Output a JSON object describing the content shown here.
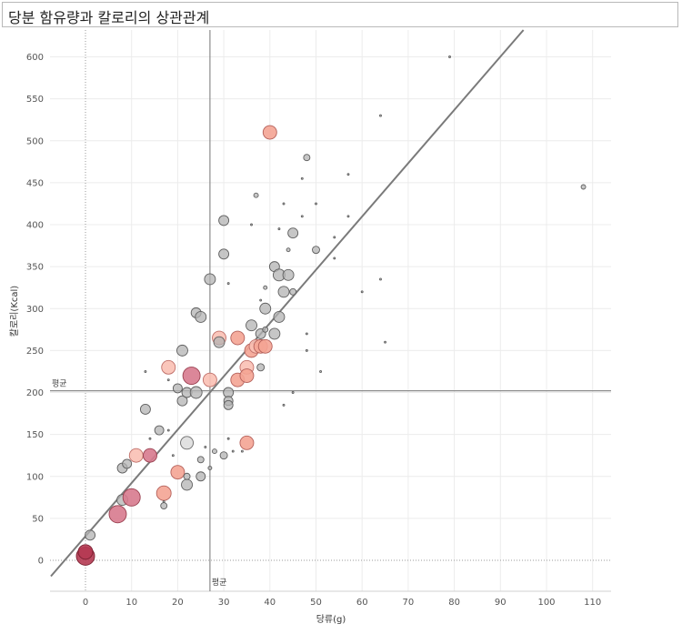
{
  "title": "당분 함유량과 칼로리의 상관관계",
  "chart_data": {
    "type": "scatter",
    "title": "당분 함유량과 칼로리의 상관관계",
    "xlabel": "당류(g)",
    "ylabel": "칼로리(Kcal)",
    "xlim": [
      -7.5,
      114
    ],
    "ylim": [
      -35,
      630
    ],
    "x_ticks": [
      0,
      10,
      20,
      30,
      40,
      50,
      60,
      70,
      80,
      90,
      100,
      110
    ],
    "y_ticks": [
      0,
      50,
      100,
      150,
      200,
      250,
      300,
      350,
      400,
      450,
      500,
      550,
      600
    ],
    "grid": true,
    "reference_lines": {
      "mean_x": {
        "value": 27,
        "label": "평균"
      },
      "mean_y": {
        "value": 202,
        "label": "평균"
      }
    },
    "trend_line": {
      "from": [
        -7.5,
        -19
      ],
      "to": [
        95,
        632
      ]
    },
    "colors": {
      "gray_fill": "#b3b3b3",
      "gray_stroke": "#5f5f5f",
      "light_salmon": "#f9c0b4",
      "salmon": "#f4a494",
      "pink": "#d77a8e",
      "dark_red": "#b53a52",
      "trend": "#7a7a7a"
    },
    "points": [
      {
        "x": 0,
        "y": 5,
        "s": 10,
        "c": "dark_red"
      },
      {
        "x": 0,
        "y": 10,
        "s": 8,
        "c": "dark_red"
      },
      {
        "x": 1,
        "y": 30,
        "s": 5.5,
        "c": "gray"
      },
      {
        "x": 7,
        "y": 55,
        "s": 9.5,
        "c": "pink"
      },
      {
        "x": 8,
        "y": 72,
        "s": 6,
        "c": "gray"
      },
      {
        "x": 8,
        "y": 110,
        "s": 5.5,
        "c": "gray"
      },
      {
        "x": 9,
        "y": 115,
        "s": 5,
        "c": "gray"
      },
      {
        "x": 10,
        "y": 75,
        "s": 9.5,
        "c": "pink"
      },
      {
        "x": 11,
        "y": 125,
        "s": 7.5,
        "c": "light_salmon"
      },
      {
        "x": 13,
        "y": 180,
        "s": 5.5,
        "c": "gray"
      },
      {
        "x": 13,
        "y": 225,
        "s": 1,
        "c": "gray"
      },
      {
        "x": 14,
        "y": 125,
        "s": 7.5,
        "c": "pink"
      },
      {
        "x": 14,
        "y": 145,
        "s": 1,
        "c": "gray"
      },
      {
        "x": 16,
        "y": 155,
        "s": 5,
        "c": "gray"
      },
      {
        "x": 17,
        "y": 80,
        "s": 8,
        "c": "salmon"
      },
      {
        "x": 17,
        "y": 65,
        "s": 3.5,
        "c": "gray"
      },
      {
        "x": 17,
        "y": 70,
        "s": 1,
        "c": "gray"
      },
      {
        "x": 18,
        "y": 230,
        "s": 7.5,
        "c": "light_salmon"
      },
      {
        "x": 18,
        "y": 155,
        "s": 1,
        "c": "gray"
      },
      {
        "x": 18,
        "y": 215,
        "s": 1,
        "c": "gray"
      },
      {
        "x": 19,
        "y": 125,
        "s": 1,
        "c": "gray"
      },
      {
        "x": 20,
        "y": 205,
        "s": 5,
        "c": "gray"
      },
      {
        "x": 20,
        "y": 105,
        "s": 7.5,
        "c": "salmon"
      },
      {
        "x": 21,
        "y": 250,
        "s": 6,
        "c": "gray"
      },
      {
        "x": 21,
        "y": 190,
        "s": 5.5,
        "c": "gray"
      },
      {
        "x": 22,
        "y": 140,
        "s": 7,
        "c": "light_gray"
      },
      {
        "x": 22,
        "y": 90,
        "s": 6,
        "c": "gray"
      },
      {
        "x": 22,
        "y": 200,
        "s": 5.5,
        "c": "gray"
      },
      {
        "x": 22,
        "y": 100,
        "s": 3.5,
        "c": "gray"
      },
      {
        "x": 23,
        "y": 220,
        "s": 9.5,
        "c": "pink"
      },
      {
        "x": 24,
        "y": 295,
        "s": 5.5,
        "c": "gray"
      },
      {
        "x": 24,
        "y": 200,
        "s": 6.5,
        "c": "gray"
      },
      {
        "x": 25,
        "y": 290,
        "s": 6,
        "c": "gray"
      },
      {
        "x": 25,
        "y": 100,
        "s": 5,
        "c": "gray"
      },
      {
        "x": 25,
        "y": 120,
        "s": 3.5,
        "c": "gray"
      },
      {
        "x": 26,
        "y": 135,
        "s": 1,
        "c": "gray"
      },
      {
        "x": 27,
        "y": 335,
        "s": 6,
        "c": "gray"
      },
      {
        "x": 27,
        "y": 215,
        "s": 7.5,
        "c": "light_salmon"
      },
      {
        "x": 27,
        "y": 110,
        "s": 2,
        "c": "gray"
      },
      {
        "x": 28,
        "y": 130,
        "s": 2.5,
        "c": "gray"
      },
      {
        "x": 29,
        "y": 265,
        "s": 7.5,
        "c": "light_salmon"
      },
      {
        "x": 29,
        "y": 260,
        "s": 6,
        "c": "gray"
      },
      {
        "x": 30,
        "y": 405,
        "s": 5.5,
        "c": "gray"
      },
      {
        "x": 30,
        "y": 365,
        "s": 5.5,
        "c": "gray"
      },
      {
        "x": 30,
        "y": 125,
        "s": 4,
        "c": "gray"
      },
      {
        "x": 31,
        "y": 200,
        "s": 5.5,
        "c": "gray"
      },
      {
        "x": 31,
        "y": 190,
        "s": 5,
        "c": "gray"
      },
      {
        "x": 31,
        "y": 185,
        "s": 5,
        "c": "gray"
      },
      {
        "x": 31,
        "y": 145,
        "s": 1,
        "c": "gray"
      },
      {
        "x": 31,
        "y": 330,
        "s": 1,
        "c": "gray"
      },
      {
        "x": 32,
        "y": 130,
        "s": 1,
        "c": "gray"
      },
      {
        "x": 33,
        "y": 265,
        "s": 7.5,
        "c": "salmon"
      },
      {
        "x": 33,
        "y": 215,
        "s": 7.5,
        "c": "salmon"
      },
      {
        "x": 34,
        "y": 130,
        "s": 1,
        "c": "gray"
      },
      {
        "x": 35,
        "y": 140,
        "s": 7.5,
        "c": "salmon"
      },
      {
        "x": 35,
        "y": 230,
        "s": 7.5,
        "c": "light_salmon"
      },
      {
        "x": 35,
        "y": 220,
        "s": 7.5,
        "c": "salmon"
      },
      {
        "x": 36,
        "y": 250,
        "s": 7.5,
        "c": "salmon"
      },
      {
        "x": 36,
        "y": 280,
        "s": 6,
        "c": "gray"
      },
      {
        "x": 36,
        "y": 400,
        "s": 1,
        "c": "gray"
      },
      {
        "x": 37,
        "y": 435,
        "s": 2.5,
        "c": "gray"
      },
      {
        "x": 37,
        "y": 255,
        "s": 7.5,
        "c": "light_salmon"
      },
      {
        "x": 38,
        "y": 255,
        "s": 7.5,
        "c": "salmon"
      },
      {
        "x": 38,
        "y": 270,
        "s": 5.5,
        "c": "gray"
      },
      {
        "x": 38,
        "y": 230,
        "s": 4,
        "c": "gray"
      },
      {
        "x": 38,
        "y": 310,
        "s": 1,
        "c": "gray"
      },
      {
        "x": 39,
        "y": 300,
        "s": 6,
        "c": "gray"
      },
      {
        "x": 39,
        "y": 325,
        "s": 2,
        "c": "gray"
      },
      {
        "x": 39,
        "y": 275,
        "s": 3,
        "c": "gray"
      },
      {
        "x": 39,
        "y": 255,
        "s": 7.5,
        "c": "salmon"
      },
      {
        "x": 40,
        "y": 510,
        "s": 7.5,
        "c": "salmon"
      },
      {
        "x": 41,
        "y": 350,
        "s": 5.5,
        "c": "gray"
      },
      {
        "x": 41,
        "y": 270,
        "s": 6,
        "c": "gray"
      },
      {
        "x": 42,
        "y": 340,
        "s": 6.5,
        "c": "gray"
      },
      {
        "x": 42,
        "y": 290,
        "s": 6,
        "c": "gray"
      },
      {
        "x": 42,
        "y": 395,
        "s": 1,
        "c": "gray"
      },
      {
        "x": 43,
        "y": 320,
        "s": 6,
        "c": "gray"
      },
      {
        "x": 43,
        "y": 425,
        "s": 1,
        "c": "gray"
      },
      {
        "x": 43,
        "y": 185,
        "s": 1,
        "c": "gray"
      },
      {
        "x": 44,
        "y": 340,
        "s": 6,
        "c": "gray"
      },
      {
        "x": 44,
        "y": 370,
        "s": 2,
        "c": "gray"
      },
      {
        "x": 45,
        "y": 390,
        "s": 5.5,
        "c": "gray"
      },
      {
        "x": 45,
        "y": 320,
        "s": 3.5,
        "c": "gray"
      },
      {
        "x": 45,
        "y": 200,
        "s": 1,
        "c": "gray"
      },
      {
        "x": 47,
        "y": 455,
        "s": 1,
        "c": "gray"
      },
      {
        "x": 47,
        "y": 410,
        "s": 1,
        "c": "gray"
      },
      {
        "x": 48,
        "y": 480,
        "s": 3.5,
        "c": "gray"
      },
      {
        "x": 48,
        "y": 270,
        "s": 1,
        "c": "gray"
      },
      {
        "x": 48,
        "y": 250,
        "s": 1,
        "c": "gray"
      },
      {
        "x": 50,
        "y": 370,
        "s": 4,
        "c": "gray"
      },
      {
        "x": 50,
        "y": 425,
        "s": 1,
        "c": "gray"
      },
      {
        "x": 51,
        "y": 225,
        "s": 1,
        "c": "gray"
      },
      {
        "x": 54,
        "y": 385,
        "s": 1,
        "c": "gray"
      },
      {
        "x": 54,
        "y": 360,
        "s": 1,
        "c": "gray"
      },
      {
        "x": 57,
        "y": 460,
        "s": 1,
        "c": "gray"
      },
      {
        "x": 57,
        "y": 410,
        "s": 1,
        "c": "gray"
      },
      {
        "x": 60,
        "y": 320,
        "s": 1,
        "c": "gray"
      },
      {
        "x": 64,
        "y": 530,
        "s": 1,
        "c": "gray"
      },
      {
        "x": 64,
        "y": 335,
        "s": 1,
        "c": "gray"
      },
      {
        "x": 65,
        "y": 260,
        "s": 1,
        "c": "gray"
      },
      {
        "x": 79,
        "y": 600,
        "s": 1,
        "c": "gray"
      },
      {
        "x": 108,
        "y": 445,
        "s": 2.5,
        "c": "gray"
      }
    ]
  }
}
